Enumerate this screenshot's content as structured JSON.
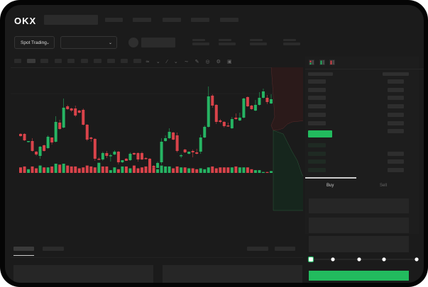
{
  "header": {
    "logo": "OKX",
    "nav_item_count": 5
  },
  "toolbar": {
    "market_selector": "Spot Trading",
    "pair_selector": ""
  },
  "trade_panel": {
    "tabs": [
      "Buy",
      "Sell"
    ],
    "active_tab": "Buy",
    "slider_percent": 0,
    "slider_stops": [
      0,
      25,
      50,
      75,
      100
    ]
  },
  "colors": {
    "up": "#26b463",
    "down": "#d9434a",
    "background": "#1b1b1b",
    "accent": "#22c05f"
  },
  "icons": [
    "order-book-both-icon",
    "order-book-bids-icon",
    "order-book-asks-icon",
    "draw-line-icon",
    "pencil-icon",
    "camera-icon",
    "settings-icon"
  ],
  "chart_data": {
    "type": "candlestick",
    "title": "",
    "candles": [
      [
        48,
        49,
        44,
        45
      ],
      [
        48,
        49,
        38,
        39
      ],
      [
        37,
        38,
        36,
        38
      ],
      [
        38,
        42,
        23,
        24
      ],
      [
        23,
        24,
        17,
        19
      ],
      [
        17,
        31,
        13,
        30
      ],
      [
        32,
        33,
        23,
        24
      ],
      [
        28,
        46,
        27,
        44
      ],
      [
        43,
        43,
        33,
        36
      ],
      [
        37,
        73,
        36,
        65
      ],
      [
        64,
        68,
        54,
        55
      ],
      [
        57,
        98,
        56,
        85
      ],
      [
        87,
        89,
        82,
        83
      ],
      [
        84,
        85,
        79,
        81
      ],
      [
        84,
        88,
        72,
        74
      ],
      [
        81,
        82,
        77,
        78
      ],
      [
        82,
        84,
        60,
        61
      ],
      [
        61,
        62,
        38,
        40
      ],
      [
        43,
        44,
        37,
        41
      ],
      [
        41,
        42,
        10,
        13
      ],
      [
        13,
        15,
        11,
        12
      ],
      [
        12,
        23,
        10,
        21
      ],
      [
        21,
        24,
        14,
        17
      ],
      [
        17,
        20,
        9,
        18
      ],
      [
        19,
        25,
        18,
        23
      ],
      [
        23,
        24,
        5,
        8
      ],
      [
        8,
        11,
        7,
        11
      ],
      [
        13,
        14,
        10,
        10
      ],
      [
        11,
        22,
        10,
        20
      ],
      [
        21,
        22,
        18,
        19
      ],
      [
        21,
        22,
        9,
        12
      ],
      [
        21,
        23,
        11,
        12
      ],
      [
        14,
        15,
        12,
        13
      ],
      [
        13,
        14,
        0,
        2
      ],
      [
        3,
        4,
        1,
        1
      ],
      [
        0,
        9,
        0,
        7
      ],
      [
        8,
        42,
        5,
        37
      ],
      [
        38,
        46,
        37,
        42
      ],
      [
        42,
        56,
        41,
        51
      ],
      [
        50,
        51,
        39,
        40
      ],
      [
        46,
        50,
        22,
        24
      ],
      [
        17,
        20,
        14,
        18
      ],
      [
        26,
        27,
        21,
        22
      ],
      [
        20,
        23,
        19,
        23
      ],
      [
        24,
        26,
        15,
        22
      ],
      [
        22,
        27,
        19,
        20
      ],
      [
        23,
        47,
        20,
        43
      ],
      [
        43,
        60,
        42,
        58
      ],
      [
        58,
        115,
        57,
        101
      ],
      [
        102,
        104,
        85,
        88
      ],
      [
        89,
        90,
        62,
        65
      ],
      [
        67,
        69,
        63,
        65
      ],
      [
        65,
        66,
        57,
        59
      ],
      [
        60,
        64,
        58,
        59
      ],
      [
        56,
        72,
        55,
        69
      ],
      [
        71,
        77,
        68,
        69
      ],
      [
        67,
        78,
        66,
        71
      ],
      [
        71,
        99,
        70,
        98
      ],
      [
        100,
        101,
        86,
        87
      ],
      [
        88,
        89,
        82,
        83
      ],
      [
        81,
        96,
        80,
        89
      ],
      [
        89,
        107,
        88,
        99
      ],
      [
        99,
        112,
        98,
        108
      ],
      [
        99,
        103,
        90,
        93
      ],
      [
        91,
        104,
        90,
        97
      ]
    ],
    "volume": [
      6,
      7,
      4,
      7,
      5,
      8,
      6,
      6,
      7,
      10,
      9,
      10,
      8,
      7,
      7,
      5,
      6,
      8,
      7,
      6,
      11,
      7,
      7,
      3,
      6,
      4,
      7,
      7,
      5,
      8,
      5,
      6,
      7,
      7,
      6,
      4,
      8,
      7,
      7,
      5,
      7,
      6,
      6,
      5,
      5,
      4,
      5,
      4,
      6,
      7,
      5,
      6,
      6,
      6,
      6,
      7,
      6,
      6,
      6,
      4,
      3,
      3,
      1,
      1,
      2
    ],
    "volume_colors": [
      "down",
      "down",
      "up",
      "down",
      "down",
      "up",
      "down",
      "up",
      "down",
      "up",
      "down",
      "up",
      "down",
      "down",
      "down",
      "down",
      "down",
      "down",
      "down",
      "down",
      "up",
      "down",
      "down",
      "up",
      "up",
      "down",
      "up",
      "down",
      "up",
      "down",
      "down",
      "down",
      "down",
      "down",
      "down",
      "up",
      "up",
      "up",
      "up",
      "down",
      "down",
      "up",
      "down",
      "up",
      "down",
      "down",
      "up",
      "up",
      "up",
      "down",
      "down",
      "down",
      "down",
      "down",
      "up",
      "down",
      "up",
      "up",
      "down",
      "down",
      "up",
      "up",
      "up",
      "down",
      "up"
    ]
  }
}
